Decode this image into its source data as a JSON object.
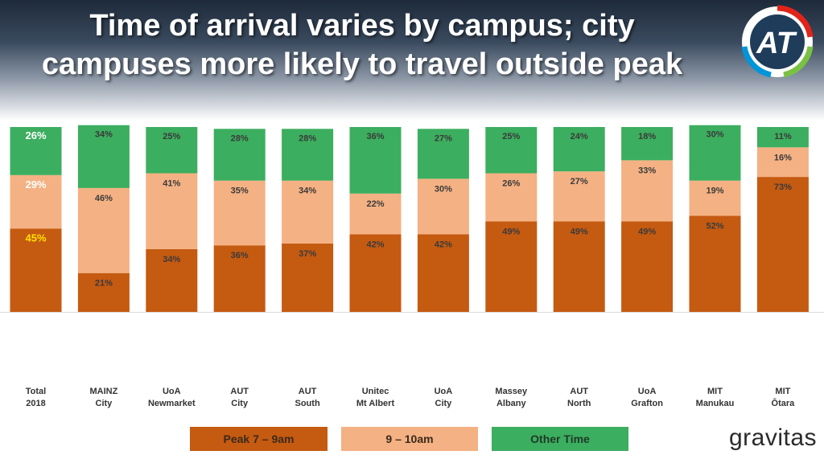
{
  "header": {
    "title_line1": "Time of arrival varies by campus; city",
    "title_line2": "campuses more likely to travel outside peak"
  },
  "logo": {
    "text": "AT"
  },
  "brand": {
    "name": "gravitas"
  },
  "colors": {
    "peak": "#c55a11",
    "mid": "#f4b183",
    "other": "#3cae5f",
    "highlight": "#ffe000",
    "label": "#3a3a3a"
  },
  "chart_data": {
    "type": "bar",
    "stacked": true,
    "normalized_percent": true,
    "categories": [
      [
        "Total",
        "2018"
      ],
      [
        "MAINZ",
        "City"
      ],
      [
        "UoA",
        "Newmarket"
      ],
      [
        "AUT",
        "City"
      ],
      [
        "AUT",
        "South"
      ],
      [
        "Unitec",
        "Mt Albert"
      ],
      [
        "UoA",
        "City"
      ],
      [
        "Massey",
        "Albany"
      ],
      [
        "AUT",
        "North"
      ],
      [
        "UoA",
        "Grafton"
      ],
      [
        "MIT",
        "Manukau"
      ],
      [
        "MIT",
        "Ōtara"
      ]
    ],
    "series": [
      {
        "name": "Peak  7 – 9am",
        "key": "peak",
        "values": [
          45,
          21,
          34,
          36,
          37,
          42,
          42,
          49,
          49,
          49,
          52,
          73
        ]
      },
      {
        "name": "9 – 10am",
        "key": "mid",
        "values": [
          29,
          46,
          41,
          35,
          34,
          22,
          30,
          26,
          27,
          33,
          19,
          16
        ]
      },
      {
        "name": "Other Time",
        "key": "other",
        "values": [
          26,
          34,
          25,
          28,
          28,
          36,
          27,
          25,
          24,
          18,
          30,
          11
        ]
      }
    ],
    "value_suffix": "%",
    "ylim": [
      0,
      100
    ],
    "legend": {
      "position": "bottom"
    }
  }
}
